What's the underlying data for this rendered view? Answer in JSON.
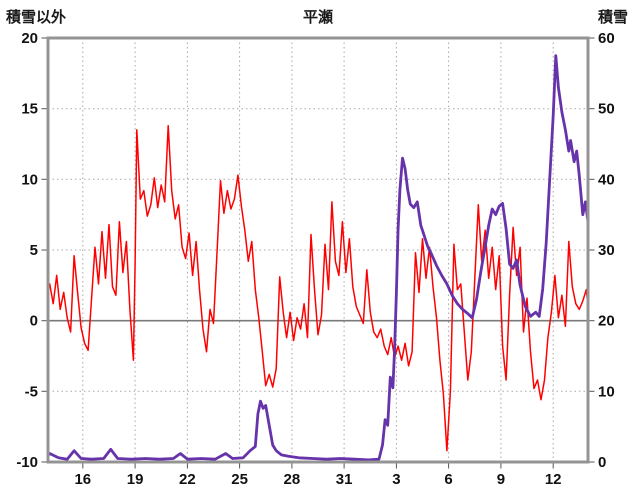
{
  "header": {
    "left_axis_title": "積雪以外",
    "title": "平瀬",
    "right_axis_title": "積雪"
  },
  "colors": {
    "plot_background": "#ffffff",
    "grid": "#a8a8a8",
    "zero_line": "#7a7a7a",
    "frame": "#949494",
    "tick": "#555555",
    "temperature_line": "#ff0000",
    "snow_line": "#6633aa"
  },
  "chart_data": {
    "type": "line",
    "title": "平瀬",
    "x_axis": {
      "range": [
        14,
        45
      ],
      "tick_positions": [
        16,
        19,
        22,
        25,
        28,
        31,
        34,
        37,
        40,
        43
      ],
      "tick_labels": [
        "16",
        "19",
        "22",
        "25",
        "28",
        "31",
        "3",
        "6",
        "9",
        "12"
      ]
    },
    "left_axis": {
      "title": "積雪以外",
      "range": [
        -10,
        20
      ],
      "ticks": [
        20,
        15,
        10,
        5,
        0,
        -5,
        -10
      ]
    },
    "right_axis": {
      "title": "積雪",
      "range": [
        0,
        60
      ],
      "ticks": [
        60,
        50,
        40,
        30,
        20,
        10,
        0
      ]
    },
    "grid": {
      "vertical": "dashed",
      "horizontal": "dashed",
      "zero_line": "solid"
    },
    "series": [
      {
        "name": "積雪以外",
        "axis": "left",
        "color": "#ff0000",
        "width": 1.5,
        "points": [
          [
            14.0,
            2.2
          ],
          [
            14.1,
            2.6
          ],
          [
            14.3,
            1.2
          ],
          [
            14.5,
            3.2
          ],
          [
            14.7,
            0.8
          ],
          [
            14.9,
            2.0
          ],
          [
            15.1,
            0.2
          ],
          [
            15.3,
            -0.8
          ],
          [
            15.5,
            4.6
          ],
          [
            15.7,
            2.0
          ],
          [
            15.9,
            -0.5
          ],
          [
            16.1,
            -1.6
          ],
          [
            16.3,
            -2.1
          ],
          [
            16.5,
            1.5
          ],
          [
            16.7,
            5.2
          ],
          [
            16.9,
            2.6
          ],
          [
            17.1,
            6.3
          ],
          [
            17.3,
            3.0
          ],
          [
            17.5,
            6.8
          ],
          [
            17.7,
            2.4
          ],
          [
            17.9,
            1.8
          ],
          [
            18.1,
            7.0
          ],
          [
            18.3,
            3.4
          ],
          [
            18.5,
            5.6
          ],
          [
            18.7,
            0.8
          ],
          [
            18.9,
            -2.8
          ],
          [
            19.0,
            4.0
          ],
          [
            19.1,
            13.5
          ],
          [
            19.3,
            8.6
          ],
          [
            19.5,
            9.2
          ],
          [
            19.7,
            7.4
          ],
          [
            19.9,
            8.2
          ],
          [
            20.1,
            10.1
          ],
          [
            20.3,
            8.0
          ],
          [
            20.5,
            9.6
          ],
          [
            20.7,
            8.4
          ],
          [
            20.9,
            13.8
          ],
          [
            21.1,
            9.2
          ],
          [
            21.3,
            7.2
          ],
          [
            21.5,
            8.2
          ],
          [
            21.7,
            5.2
          ],
          [
            21.9,
            4.4
          ],
          [
            22.1,
            6.2
          ],
          [
            22.3,
            3.2
          ],
          [
            22.5,
            5.6
          ],
          [
            22.7,
            2.2
          ],
          [
            22.9,
            -0.6
          ],
          [
            23.1,
            -2.2
          ],
          [
            23.3,
            0.8
          ],
          [
            23.5,
            -0.2
          ],
          [
            23.7,
            4.8
          ],
          [
            23.9,
            9.9
          ],
          [
            24.1,
            7.6
          ],
          [
            24.3,
            9.2
          ],
          [
            24.5,
            7.9
          ],
          [
            24.7,
            8.6
          ],
          [
            24.9,
            10.3
          ],
          [
            25.1,
            8.1
          ],
          [
            25.3,
            6.4
          ],
          [
            25.5,
            4.2
          ],
          [
            25.7,
            5.6
          ],
          [
            25.9,
            2.2
          ],
          [
            26.1,
            0.2
          ],
          [
            26.3,
            -2.2
          ],
          [
            26.5,
            -4.6
          ],
          [
            26.7,
            -3.8
          ],
          [
            26.9,
            -4.7
          ],
          [
            27.1,
            -3.4
          ],
          [
            27.3,
            3.1
          ],
          [
            27.5,
            0.6
          ],
          [
            27.7,
            -1.2
          ],
          [
            27.9,
            0.6
          ],
          [
            28.1,
            -1.4
          ],
          [
            28.3,
            0.2
          ],
          [
            28.5,
            -0.6
          ],
          [
            28.7,
            1.2
          ],
          [
            28.9,
            -1.2
          ],
          [
            29.1,
            6.1
          ],
          [
            29.3,
            2.2
          ],
          [
            29.5,
            -1.0
          ],
          [
            29.7,
            0.4
          ],
          [
            29.9,
            5.4
          ],
          [
            30.1,
            2.2
          ],
          [
            30.3,
            8.4
          ],
          [
            30.5,
            4.2
          ],
          [
            30.7,
            3.2
          ],
          [
            30.9,
            7.0
          ],
          [
            31.1,
            3.4
          ],
          [
            31.3,
            5.8
          ],
          [
            31.5,
            2.4
          ],
          [
            31.7,
            1.0
          ],
          [
            31.9,
            0.4
          ],
          [
            32.1,
            -0.2
          ],
          [
            32.3,
            3.6
          ],
          [
            32.5,
            0.6
          ],
          [
            32.7,
            -0.8
          ],
          [
            32.9,
            -1.2
          ],
          [
            33.1,
            -0.6
          ],
          [
            33.3,
            -1.8
          ],
          [
            33.5,
            -2.4
          ],
          [
            33.7,
            -1.2
          ],
          [
            33.9,
            -2.6
          ],
          [
            34.1,
            -1.8
          ],
          [
            34.3,
            -2.8
          ],
          [
            34.5,
            -1.6
          ],
          [
            34.7,
            -3.2
          ],
          [
            34.9,
            -2.2
          ],
          [
            35.1,
            4.8
          ],
          [
            35.3,
            2.0
          ],
          [
            35.5,
            5.8
          ],
          [
            35.7,
            3.0
          ],
          [
            35.9,
            5.2
          ],
          [
            36.1,
            2.4
          ],
          [
            36.3,
            0.2
          ],
          [
            36.5,
            -2.8
          ],
          [
            36.7,
            -5.2
          ],
          [
            36.9,
            -9.2
          ],
          [
            37.1,
            -5.0
          ],
          [
            37.3,
            5.4
          ],
          [
            37.5,
            2.2
          ],
          [
            37.7,
            2.6
          ],
          [
            37.9,
            -0.8
          ],
          [
            38.1,
            -4.2
          ],
          [
            38.3,
            -2.2
          ],
          [
            38.5,
            3.0
          ],
          [
            38.7,
            8.2
          ],
          [
            38.9,
            4.2
          ],
          [
            39.1,
            6.4
          ],
          [
            39.3,
            3.0
          ],
          [
            39.5,
            5.2
          ],
          [
            39.7,
            2.2
          ],
          [
            39.9,
            4.6
          ],
          [
            40.1,
            -1.8
          ],
          [
            40.3,
            -4.2
          ],
          [
            40.5,
            1.8
          ],
          [
            40.7,
            6.6
          ],
          [
            40.9,
            3.2
          ],
          [
            41.1,
            5.2
          ],
          [
            41.3,
            -0.8
          ],
          [
            41.5,
            1.6
          ],
          [
            41.7,
            -2.2
          ],
          [
            41.9,
            -4.8
          ],
          [
            42.1,
            -4.2
          ],
          [
            42.3,
            -5.6
          ],
          [
            42.5,
            -4.2
          ],
          [
            42.7,
            -1.2
          ],
          [
            42.9,
            0.6
          ],
          [
            43.1,
            3.2
          ],
          [
            43.3,
            0.2
          ],
          [
            43.5,
            1.8
          ],
          [
            43.7,
            -0.4
          ],
          [
            43.9,
            5.6
          ],
          [
            44.1,
            2.4
          ],
          [
            44.3,
            1.2
          ],
          [
            44.5,
            0.8
          ],
          [
            44.7,
            1.4
          ],
          [
            44.9,
            2.2
          ],
          [
            45.0,
            1.0
          ]
        ]
      },
      {
        "name": "積雪",
        "axis": "right",
        "color": "#6633aa",
        "width": 2.8,
        "points": [
          [
            14.0,
            1.0
          ],
          [
            14.1,
            1.2
          ],
          [
            14.6,
            0.6
          ],
          [
            15.1,
            0.4
          ],
          [
            15.5,
            1.6
          ],
          [
            15.9,
            0.5
          ],
          [
            16.5,
            0.4
          ],
          [
            17.2,
            0.5
          ],
          [
            17.6,
            1.8
          ],
          [
            18.0,
            0.5
          ],
          [
            18.8,
            0.4
          ],
          [
            19.6,
            0.5
          ],
          [
            20.4,
            0.4
          ],
          [
            21.2,
            0.5
          ],
          [
            21.6,
            1.2
          ],
          [
            22.0,
            0.4
          ],
          [
            22.8,
            0.5
          ],
          [
            23.6,
            0.4
          ],
          [
            24.2,
            1.2
          ],
          [
            24.6,
            0.5
          ],
          [
            25.2,
            0.6
          ],
          [
            25.6,
            1.6
          ],
          [
            25.9,
            2.2
          ],
          [
            26.05,
            6.8
          ],
          [
            26.2,
            8.6
          ],
          [
            26.35,
            7.6
          ],
          [
            26.5,
            8.0
          ],
          [
            26.7,
            5.2
          ],
          [
            26.9,
            2.4
          ],
          [
            27.1,
            1.6
          ],
          [
            27.4,
            1.0
          ],
          [
            27.8,
            0.8
          ],
          [
            28.4,
            0.6
          ],
          [
            29.2,
            0.5
          ],
          [
            30.0,
            0.4
          ],
          [
            30.8,
            0.5
          ],
          [
            31.6,
            0.4
          ],
          [
            32.4,
            0.3
          ],
          [
            33.0,
            0.4
          ],
          [
            33.2,
            2.4
          ],
          [
            33.35,
            6.0
          ],
          [
            33.5,
            5.2
          ],
          [
            33.65,
            12.0
          ],
          [
            33.8,
            10.5
          ],
          [
            33.9,
            16.0
          ],
          [
            34.0,
            24.0
          ],
          [
            34.1,
            33.0
          ],
          [
            34.2,
            38.5
          ],
          [
            34.35,
            43.0
          ],
          [
            34.5,
            41.5
          ],
          [
            34.65,
            38.5
          ],
          [
            34.8,
            36.5
          ],
          [
            35.0,
            36.0
          ],
          [
            35.2,
            36.8
          ],
          [
            35.4,
            33.5
          ],
          [
            35.6,
            32.0
          ],
          [
            35.8,
            30.5
          ],
          [
            36.0,
            29.5
          ],
          [
            36.3,
            27.8
          ],
          [
            36.6,
            26.4
          ],
          [
            36.9,
            25.2
          ],
          [
            37.2,
            23.6
          ],
          [
            37.5,
            22.4
          ],
          [
            37.8,
            21.6
          ],
          [
            38.1,
            21.0
          ],
          [
            38.35,
            20.4
          ],
          [
            38.6,
            23.0
          ],
          [
            38.85,
            27.0
          ],
          [
            39.1,
            30.5
          ],
          [
            39.3,
            33.5
          ],
          [
            39.5,
            35.8
          ],
          [
            39.7,
            35.0
          ],
          [
            39.9,
            36.2
          ],
          [
            40.1,
            36.6
          ],
          [
            40.3,
            33.0
          ],
          [
            40.5,
            28.0
          ],
          [
            40.7,
            27.4
          ],
          [
            40.9,
            28.6
          ],
          [
            41.1,
            25.0
          ],
          [
            41.4,
            22.0
          ],
          [
            41.7,
            20.6
          ],
          [
            42.0,
            21.2
          ],
          [
            42.2,
            20.6
          ],
          [
            42.4,
            24.5
          ],
          [
            42.6,
            31.0
          ],
          [
            42.8,
            40.0
          ],
          [
            43.0,
            49.0
          ],
          [
            43.15,
            57.5
          ],
          [
            43.3,
            53.0
          ],
          [
            43.5,
            49.5
          ],
          [
            43.7,
            47.0
          ],
          [
            43.9,
            44.0
          ],
          [
            44.0,
            45.5
          ],
          [
            44.2,
            42.5
          ],
          [
            44.35,
            44.0
          ],
          [
            44.5,
            40.5
          ],
          [
            44.7,
            35.0
          ],
          [
            44.85,
            36.8
          ],
          [
            45.0,
            34.0
          ]
        ]
      }
    ]
  }
}
